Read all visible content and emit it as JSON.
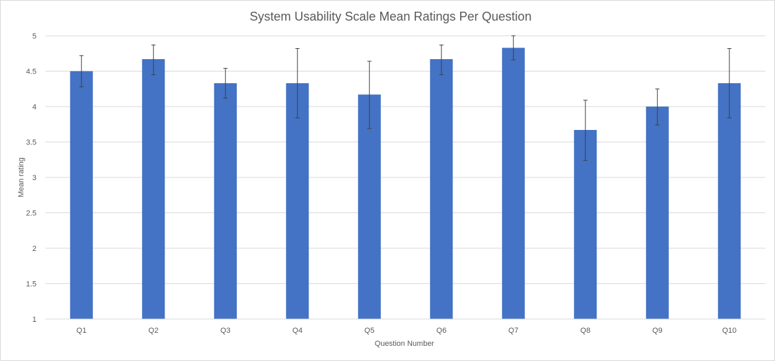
{
  "chart_data": {
    "type": "bar",
    "title": "System Usability Scale Mean Ratings Per Question",
    "xlabel": "Question Number",
    "ylabel": "Mean rating",
    "categories": [
      "Q1",
      "Q2",
      "Q3",
      "Q4",
      "Q5",
      "Q6",
      "Q7",
      "Q8",
      "Q9",
      "Q10"
    ],
    "values": [
      4.5,
      4.67,
      4.33,
      4.33,
      4.17,
      4.67,
      4.83,
      3.67,
      4.0,
      4.33
    ],
    "error_bars": [
      [
        4.28,
        4.72
      ],
      [
        4.45,
        4.87
      ],
      [
        4.12,
        4.54
      ],
      [
        3.84,
        4.82
      ],
      [
        3.69,
        4.64
      ],
      [
        4.45,
        4.87
      ],
      [
        4.66,
        5.0
      ],
      [
        3.24,
        4.09
      ],
      [
        3.74,
        4.25
      ],
      [
        3.84,
        4.82
      ]
    ],
    "yticks": [
      "1",
      "1.5",
      "2",
      "2.5",
      "3",
      "3.5",
      "4",
      "4.5",
      "5"
    ],
    "ylim": [
      1,
      5
    ],
    "grid": true,
    "legend": "none",
    "colors": {
      "bar": "#4472C4",
      "grid": "#d9d9d9",
      "error_bar": "#404040",
      "text": "#595959"
    }
  }
}
